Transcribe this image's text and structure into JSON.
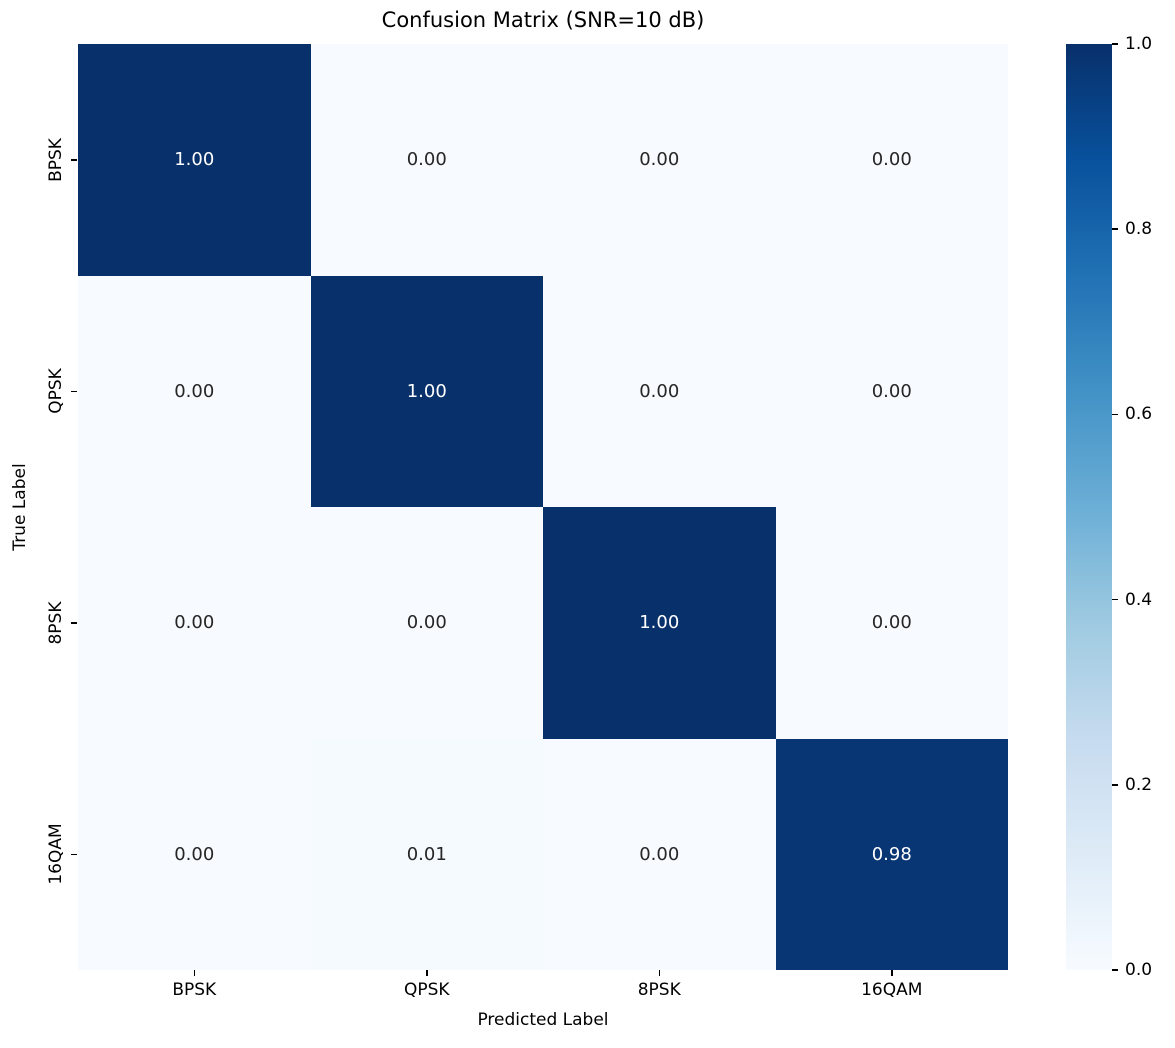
{
  "chart_data": {
    "type": "heatmap",
    "title": "Confusion Matrix (SNR=10 dB)",
    "xlabel": "Predicted Label",
    "ylabel": "True Label",
    "x_categories": [
      "BPSK",
      "QPSK",
      "8PSK",
      "16QAM"
    ],
    "y_categories": [
      "BPSK",
      "QPSK",
      "8PSK",
      "16QAM"
    ],
    "matrix": [
      [
        1.0,
        0.0,
        0.0,
        0.0
      ],
      [
        0.0,
        1.0,
        0.0,
        0.0
      ],
      [
        0.0,
        0.0,
        1.0,
        0.0
      ],
      [
        0.0,
        0.01,
        0.0,
        0.98
      ]
    ],
    "cell_label_format": "two-decimal",
    "colormap": "Blues",
    "vmin": 0.0,
    "vmax": 1.0,
    "colorbar_tick_values": [
      1.0,
      0.8,
      0.6,
      0.4,
      0.2,
      0.0
    ],
    "colorbar_tick_labels": [
      "1.0",
      "0.8",
      "0.6",
      "0.4",
      "0.2",
      "0.0"
    ],
    "grid": false,
    "legend": "colorbar-right"
  },
  "style": {
    "cmap_stops": [
      [
        0.0,
        "#f7fbff"
      ],
      [
        0.125,
        "#deebf7"
      ],
      [
        0.25,
        "#c6dbef"
      ],
      [
        0.375,
        "#9ecae1"
      ],
      [
        0.5,
        "#6baed6"
      ],
      [
        0.625,
        "#4292c6"
      ],
      [
        0.75,
        "#2171b5"
      ],
      [
        0.875,
        "#08519c"
      ],
      [
        1.0,
        "#08306b"
      ]
    ],
    "annot_color_light_cell": "#262626",
    "annot_color_dark_cell": "#ffffff",
    "axis_text_color": "#000000",
    "background": "#ffffff"
  }
}
